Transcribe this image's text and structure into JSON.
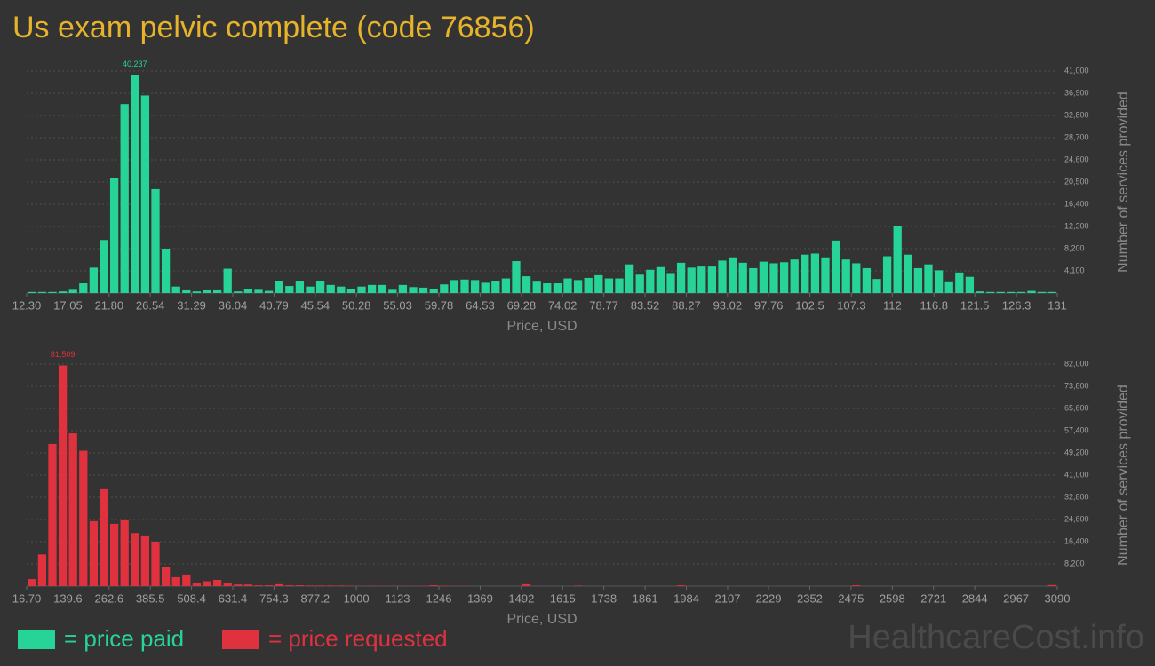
{
  "title": "Us exam pelvic complete (code 76856)",
  "watermark": "HealthcareCost.info",
  "chart_data": [
    {
      "type": "histogram",
      "x_label": "Price, USD",
      "y_label": "Number of services provided",
      "grid": true,
      "xlim": [
        12.3,
        131
      ],
      "ylim": [
        0,
        41000
      ],
      "bins": [
        12.3,
        13.487,
        14.674,
        15.861,
        17.048,
        18.235,
        19.422,
        20.609,
        21.796,
        22.983,
        24.17,
        25.357,
        26.544,
        27.731,
        28.918,
        30.105,
        31.292,
        32.479,
        33.666,
        34.853,
        36.04,
        37.227,
        38.414,
        39.601,
        40.788,
        41.975,
        43.162,
        44.349,
        45.536,
        46.723,
        47.91,
        49.097,
        50.284,
        51.471,
        52.658,
        53.845,
        55.032,
        56.219,
        57.406,
        58.593,
        59.78,
        60.967,
        62.154,
        63.341,
        64.528,
        65.715,
        66.902,
        68.089,
        69.276,
        70.463,
        71.65,
        72.837,
        74.024,
        75.211,
        76.398,
        77.585,
        78.772,
        79.959,
        81.146,
        82.333,
        83.52,
        84.707,
        85.894,
        87.081,
        88.268,
        89.455,
        90.642,
        91.829,
        93.016,
        94.203,
        95.39,
        96.577,
        97.764,
        98.951,
        100.138,
        101.325,
        102.512,
        103.699,
        104.886,
        106.073,
        107.26,
        108.447,
        109.634,
        110.821,
        112.008,
        113.195,
        114.382,
        115.569,
        116.756,
        117.943,
        119.13,
        120.317,
        121.504,
        122.691,
        123.878,
        125.065,
        126.252,
        127.439,
        128.626,
        129.813,
        131
      ],
      "series": [
        {
          "name": "= price paid",
          "color": "#27d497",
          "values": [
            200,
            200,
            200,
            300,
            600,
            1800,
            4700,
            9800,
            21300,
            34900,
            40237,
            36500,
            19200,
            8200,
            1200,
            500,
            300,
            500,
            500,
            4500,
            300,
            800,
            600,
            400,
            2200,
            1300,
            2200,
            1200,
            2300,
            1500,
            1200,
            800,
            1200,
            1500,
            1500,
            600,
            1500,
            1100,
            1000,
            800,
            1600,
            2400,
            2500,
            2400,
            1900,
            2200,
            2700,
            5900,
            3100,
            2100,
            1800,
            1800,
            2700,
            2400,
            2800,
            3300,
            2700,
            2700,
            5300,
            3400,
            4300,
            4800,
            3700,
            5600,
            4700,
            4900,
            4900,
            6000,
            6600,
            5600,
            4600,
            5800,
            5500,
            5700,
            6200,
            7100,
            7300,
            6600,
            9700,
            6200,
            5500,
            4600,
            2600,
            6800,
            12300,
            7100,
            4600,
            5300,
            4200,
            2000,
            3800,
            3000,
            300,
            200,
            200,
            200,
            200,
            400,
            200,
            200
          ],
          "value_labels": [
            null,
            null,
            null,
            null,
            null,
            null,
            null,
            null,
            null,
            null,
            "40,237",
            null,
            null,
            null,
            null,
            null,
            null,
            null,
            null,
            null,
            null,
            null,
            null,
            null,
            null,
            null,
            null,
            null,
            null,
            null,
            null,
            null,
            null,
            null,
            null,
            null,
            null,
            null,
            null,
            null,
            null,
            null,
            null,
            null,
            null,
            null,
            null,
            null,
            null,
            null,
            null,
            null,
            null,
            null,
            null,
            null,
            null,
            null,
            null,
            null,
            null,
            null,
            null,
            null,
            null,
            null,
            null,
            null,
            null,
            null,
            null,
            null,
            null,
            null,
            null,
            null,
            null,
            null,
            null,
            null,
            null,
            null,
            null,
            null,
            null,
            null,
            null,
            null,
            null,
            null,
            null,
            null,
            null,
            null,
            null,
            null,
            null,
            null,
            null,
            null
          ]
        }
      ],
      "xticks": [
        {
          "value": 12.3,
          "label": "12.30"
        },
        17.05,
        {
          "value": 21.8,
          "label": "21.80"
        },
        26.54,
        31.29,
        36.04,
        40.79,
        45.54,
        50.28,
        55.03,
        59.78,
        64.53,
        69.28,
        74.02,
        78.77,
        83.52,
        88.27,
        93.02,
        97.76,
        102.5,
        107.3,
        112,
        116.8,
        121.5,
        126.3,
        131
      ],
      "yticks": [
        {
          "value": 4100,
          "label": "4,100"
        },
        {
          "value": 8200,
          "label": "8,200"
        },
        {
          "value": 12300,
          "label": "12,300"
        },
        {
          "value": 16400,
          "label": "16,400"
        },
        {
          "value": 20500,
          "label": "20,500"
        },
        {
          "value": 24600,
          "label": "24,600"
        },
        {
          "value": 28700,
          "label": "28,700"
        },
        {
          "value": 32800,
          "label": "32,800"
        },
        {
          "value": 36900,
          "label": "36,900"
        },
        {
          "value": 41000,
          "label": "41,000"
        }
      ]
    },
    {
      "type": "histogram",
      "x_label": "Price, USD",
      "y_label": "Number of services provided",
      "grid": true,
      "xlim": [
        16.7,
        3090
      ],
      "ylim": [
        0,
        82000
      ],
      "bins": [
        16.7,
        47.433,
        78.166,
        108.899,
        139.632,
        170.365,
        201.098,
        231.831,
        262.564,
        293.297,
        324.03,
        354.763,
        385.496,
        416.229,
        446.962,
        477.695,
        508.428,
        539.161,
        569.894,
        600.627,
        631.36,
        662.093,
        692.826,
        723.559,
        754.292,
        785.025,
        815.758,
        846.491,
        877.224,
        907.957,
        938.69,
        969.423,
        1000.156,
        1030.889,
        1061.622,
        1092.355,
        1123.088,
        1153.821,
        1184.554,
        1215.287,
        1246.02,
        1276.753,
        1307.486,
        1338.219,
        1368.952,
        1399.685,
        1430.418,
        1461.151,
        1491.884,
        1522.617,
        1553.35,
        1584.083,
        1614.816,
        1645.549,
        1676.282,
        1707.015,
        1737.748,
        1768.481,
        1799.214,
        1829.947,
        1860.68,
        1891.413,
        1922.146,
        1952.879,
        1983.612,
        2014.345,
        2045.078,
        2075.811,
        2106.544,
        2137.277,
        2168.01,
        2198.743,
        2229.476,
        2260.209,
        2290.942,
        2321.675,
        2352.408,
        2383.141,
        2413.874,
        2444.607,
        2475.34,
        2506.073,
        2536.806,
        2567.539,
        2598.272,
        2629.005,
        2659.738,
        2690.471,
        2721.204,
        2751.937,
        2782.67,
        2813.403,
        2844.136,
        2874.869,
        2905.602,
        2936.335,
        2967.068,
        2997.801,
        3028.534,
        3059.267,
        3090
      ],
      "series": [
        {
          "name": "= price requested",
          "color": "#e0313f",
          "values": [
            2600,
            11700,
            52500,
            81509,
            56400,
            50000,
            24000,
            35800,
            23000,
            24300,
            19600,
            18400,
            16400,
            6900,
            3300,
            4300,
            1300,
            1800,
            2300,
            1300,
            600,
            600,
            300,
            300,
            700,
            300,
            300,
            200,
            200,
            200,
            200,
            100,
            100,
            100,
            100,
            100,
            100,
            100,
            100,
            300,
            100,
            100,
            100,
            0,
            0,
            0,
            0,
            0,
            700,
            0,
            0,
            0,
            0,
            200,
            0,
            0,
            0,
            0,
            0,
            0,
            0,
            0,
            0,
            300,
            0,
            0,
            0,
            0,
            0,
            0,
            0,
            0,
            0,
            0,
            0,
            0,
            0,
            0,
            0,
            0,
            300,
            0,
            0,
            0,
            0,
            0,
            0,
            0,
            0,
            0,
            0,
            0,
            0,
            0,
            0,
            0,
            0,
            0,
            0,
            400
          ],
          "value_labels": [
            null,
            null,
            null,
            "81,509",
            null,
            null,
            null,
            null,
            null,
            null,
            null,
            null,
            null,
            null,
            null,
            null,
            null,
            null,
            null,
            null,
            null,
            null,
            null,
            null,
            null,
            null,
            null,
            null,
            null,
            null,
            null,
            null,
            null,
            null,
            null,
            null,
            null,
            null,
            null,
            null,
            null,
            null,
            null,
            null,
            null,
            null,
            null,
            null,
            null,
            null,
            null,
            null,
            null,
            null,
            null,
            null,
            null,
            null,
            null,
            null,
            null,
            null,
            null,
            null,
            null,
            null,
            null,
            null,
            null,
            null,
            null,
            null,
            null,
            null,
            null,
            null,
            null,
            null,
            null,
            null,
            null,
            null,
            null,
            null,
            null,
            null,
            null,
            null,
            null,
            null,
            null,
            null,
            null,
            null,
            null,
            null,
            null,
            null,
            null,
            null
          ]
        }
      ],
      "xticks": [
        {
          "value": 16.7,
          "label": "16.70"
        },
        139.6,
        262.6,
        385.5,
        508.4,
        631.4,
        754.3,
        877.2,
        1000,
        1123,
        1246,
        1369,
        1492,
        1615,
        1738,
        1861,
        1984,
        2107,
        2229,
        2352,
        2475,
        2598,
        2721,
        2844,
        2967,
        3090
      ],
      "yticks": [
        {
          "value": 8200,
          "label": "8,200"
        },
        {
          "value": 16400,
          "label": "16,400"
        },
        {
          "value": 24600,
          "label": "24,600"
        },
        {
          "value": 32800,
          "label": "32,800"
        },
        {
          "value": 41000,
          "label": "41,000"
        },
        {
          "value": 49200,
          "label": "49,200"
        },
        {
          "value": 57400,
          "label": "57,400"
        },
        {
          "value": 65600,
          "label": "65,600"
        },
        {
          "value": 73800,
          "label": "73,800"
        },
        {
          "value": 82000,
          "label": "82,000"
        }
      ]
    }
  ]
}
